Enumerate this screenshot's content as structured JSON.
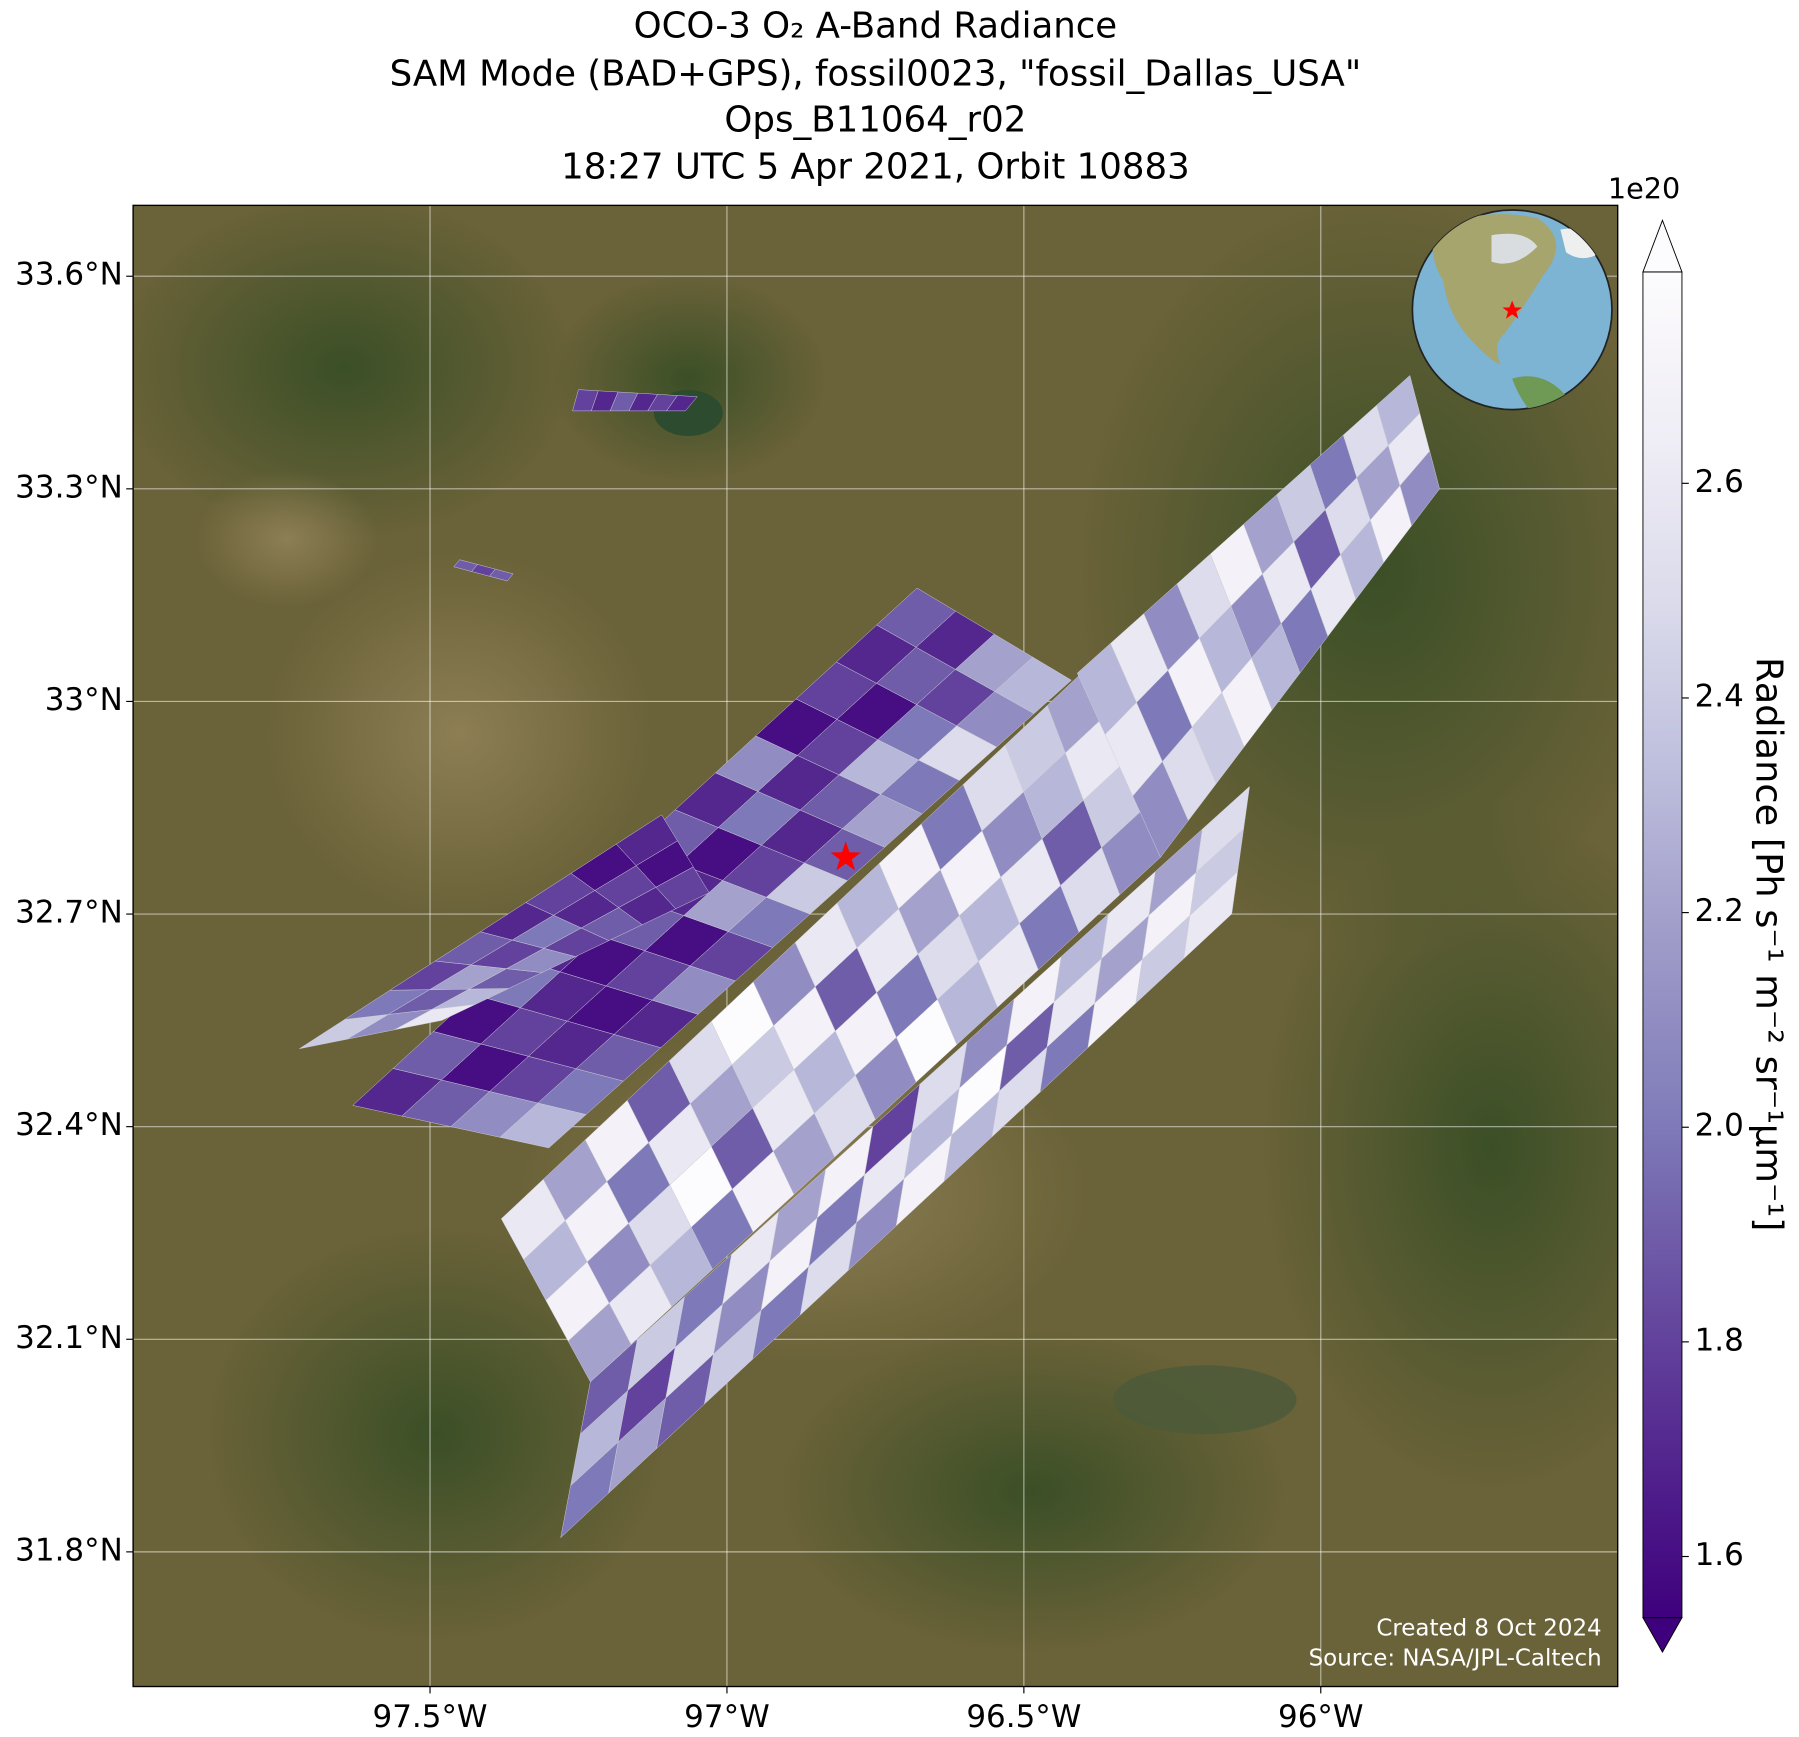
{
  "chart_data": {
    "type": "map",
    "title_lines": [
      "OCO-3 O₂ A-Band Radiance",
      "SAM Mode (BAD+GPS), fossil0023, \"fossil_Dallas_USA\"",
      "Ops_B11064_r02",
      "18:27 UTC 5 Apr 2021, Orbit 10883"
    ],
    "xlim": [
      -98.0,
      -95.5
    ],
    "ylim": [
      31.61,
      33.7
    ],
    "xticks": [
      {
        "value": -97.5,
        "label": "97.5°W"
      },
      {
        "value": -97,
        "label": "97°W"
      },
      {
        "value": -96.5,
        "label": "96.5°W"
      },
      {
        "value": -96,
        "label": "96°W"
      }
    ],
    "yticks": [
      {
        "value": 31.8,
        "label": "31.8°N"
      },
      {
        "value": 32.1,
        "label": "32.1°N"
      },
      {
        "value": 32.4,
        "label": "32.4°N"
      },
      {
        "value": 32.7,
        "label": "32.7°N"
      },
      {
        "value": 33,
        "label": "33°N"
      },
      {
        "value": 33.3,
        "label": "33.3°N"
      },
      {
        "value": 33.6,
        "label": "33.6°N"
      }
    ],
    "grid": true,
    "colorbar": {
      "label": "Radiance [Ph s⁻¹ m⁻² sr⁻¹μm⁻¹]",
      "offset_label": "1e20",
      "lim": [
        1.543,
        2.797
      ],
      "ticks": [
        1.6,
        1.8,
        {
          "value": 2,
          "label": "2.0"
        },
        2.2,
        2.4,
        2.6
      ],
      "colors": [
        "#3f007d",
        "#54278f",
        "#6a51a3",
        "#807dba",
        "#9e9ac8",
        "#bcbddc",
        "#dadaeb",
        "#efedf5",
        "#fcfbfd"
      ],
      "extend": "both"
    },
    "swaths": [
      {
        "corners": [
          [
            -97.3,
            32.37
          ],
          [
            -96.42,
            33.03
          ],
          [
            -96.68,
            33.16
          ],
          [
            -97.63,
            32.43
          ]
        ],
        "values": [
          [
            2.3,
            2.0,
            1.9,
            1.7,
            2.1,
            1.8,
            2.0,
            2.4,
            1.9,
            2.2,
            2.0,
            2.5,
            2.1,
            2.3
          ],
          [
            2.1,
            1.8,
            1.7,
            1.6,
            1.8,
            1.6,
            2.2,
            1.8,
            1.7,
            1.9,
            2.3,
            2.0,
            1.8,
            2.2
          ],
          [
            1.9,
            1.6,
            1.8,
            1.7,
            1.6,
            1.9,
            1.7,
            1.6,
            2.0,
            1.7,
            1.8,
            1.6,
            1.9,
            1.7
          ],
          [
            1.7,
            1.9,
            1.6,
            2.0,
            1.7,
            1.8,
            1.6,
            1.9,
            1.7,
            2.1,
            1.6,
            1.8,
            1.7,
            1.9
          ]
        ]
      },
      {
        "corners": [
          [
            -97.48,
            32.55
          ],
          [
            -97.03,
            32.73
          ],
          [
            -97.11,
            32.84
          ],
          [
            -97.72,
            32.51
          ]
        ],
        "values": [
          [
            2.6,
            2.3,
            1.9,
            2.1,
            1.8,
            1.9,
            1.7,
            1.8
          ],
          [
            2.1,
            1.9,
            2.2,
            1.8,
            2.0,
            1.7,
            1.8,
            1.6
          ],
          [
            2.4,
            2.0,
            1.8,
            1.9,
            1.7,
            1.8,
            1.6,
            1.7
          ]
        ]
      },
      {
        "corners": [
          [
            -97.28,
            31.82
          ],
          [
            -96.15,
            32.7
          ],
          [
            -96.12,
            32.88
          ],
          [
            -97.23,
            32.04
          ]
        ],
        "values": [
          [
            2.0,
            2.2,
            1.9,
            2.4,
            2.0,
            2.5,
            2.1,
            2.7,
            2.3,
            2.5,
            2.0,
            2.7,
            2.4,
            2.6
          ],
          [
            2.3,
            1.8,
            2.5,
            2.1,
            2.7,
            2.0,
            2.6,
            2.3,
            2.8,
            1.9,
            2.6,
            2.2,
            2.7,
            2.4
          ],
          [
            1.9,
            2.4,
            2.0,
            2.6,
            2.2,
            2.7,
            1.8,
            2.5,
            2.1,
            2.7,
            2.3,
            2.6,
            2.2,
            2.5
          ]
        ]
      },
      {
        "corners": [
          [
            -97.23,
            32.04
          ],
          [
            -96.27,
            32.78
          ],
          [
            -96.39,
            33.05
          ],
          [
            -97.38,
            32.27
          ]
        ],
        "values": [
          [
            2.2,
            2.6,
            2.3,
            2.0,
            2.7,
            2.2,
            2.5,
            2.1,
            2.8,
            2.3,
            2.6,
            2.0,
            2.5,
            2.1
          ],
          [
            2.7,
            2.1,
            2.5,
            2.8,
            1.9,
            2.6,
            2.3,
            2.7,
            2.0,
            2.5,
            2.3,
            2.6,
            1.9,
            2.4
          ],
          [
            2.3,
            2.7,
            2.0,
            2.6,
            2.2,
            2.4,
            2.7,
            1.9,
            2.6,
            2.2,
            2.7,
            2.1,
            2.3,
            2.6
          ],
          [
            2.6,
            2.2,
            2.7,
            1.9,
            2.5,
            2.8,
            2.1,
            2.6,
            2.3,
            2.7,
            2.0,
            2.5,
            2.4,
            2.2
          ]
        ]
      },
      {
        "corners": [
          [
            -96.27,
            32.78
          ],
          [
            -95.8,
            33.3
          ],
          [
            -95.85,
            33.46
          ],
          [
            -96.41,
            33.04
          ]
        ],
        "values": [
          [
            2.1,
            2.5,
            2.4,
            2.7,
            2.3,
            2.0,
            2.6,
            2.3,
            2.7,
            2.1
          ],
          [
            2.6,
            2.0,
            2.7,
            2.3,
            2.1,
            2.6,
            1.9,
            2.5,
            2.2,
            2.6
          ],
          [
            2.3,
            2.6,
            2.1,
            2.5,
            2.7,
            2.2,
            2.4,
            2.0,
            2.5,
            2.3
          ]
        ]
      },
      {
        "corners": [
          [
            -97.26,
            33.41
          ],
          [
            -97.07,
            33.41
          ],
          [
            -97.05,
            33.43
          ],
          [
            -97.25,
            33.44
          ]
        ],
        "values": [
          [
            1.8,
            1.7,
            1.9,
            1.7,
            1.8,
            1.7
          ]
        ]
      },
      {
        "corners": [
          [
            -97.46,
            33.19
          ],
          [
            -97.37,
            33.17
          ],
          [
            -97.36,
            33.18
          ],
          [
            -97.45,
            33.2
          ]
        ],
        "values": [
          [
            1.9,
            1.8,
            1.9
          ]
        ]
      }
    ],
    "target": {
      "lon": -96.8,
      "lat": 32.78,
      "color": "#ff0000"
    },
    "credits": [
      "Created 8 Oct 2024",
      "Source: NASA/JPL-Caltech"
    ]
  }
}
